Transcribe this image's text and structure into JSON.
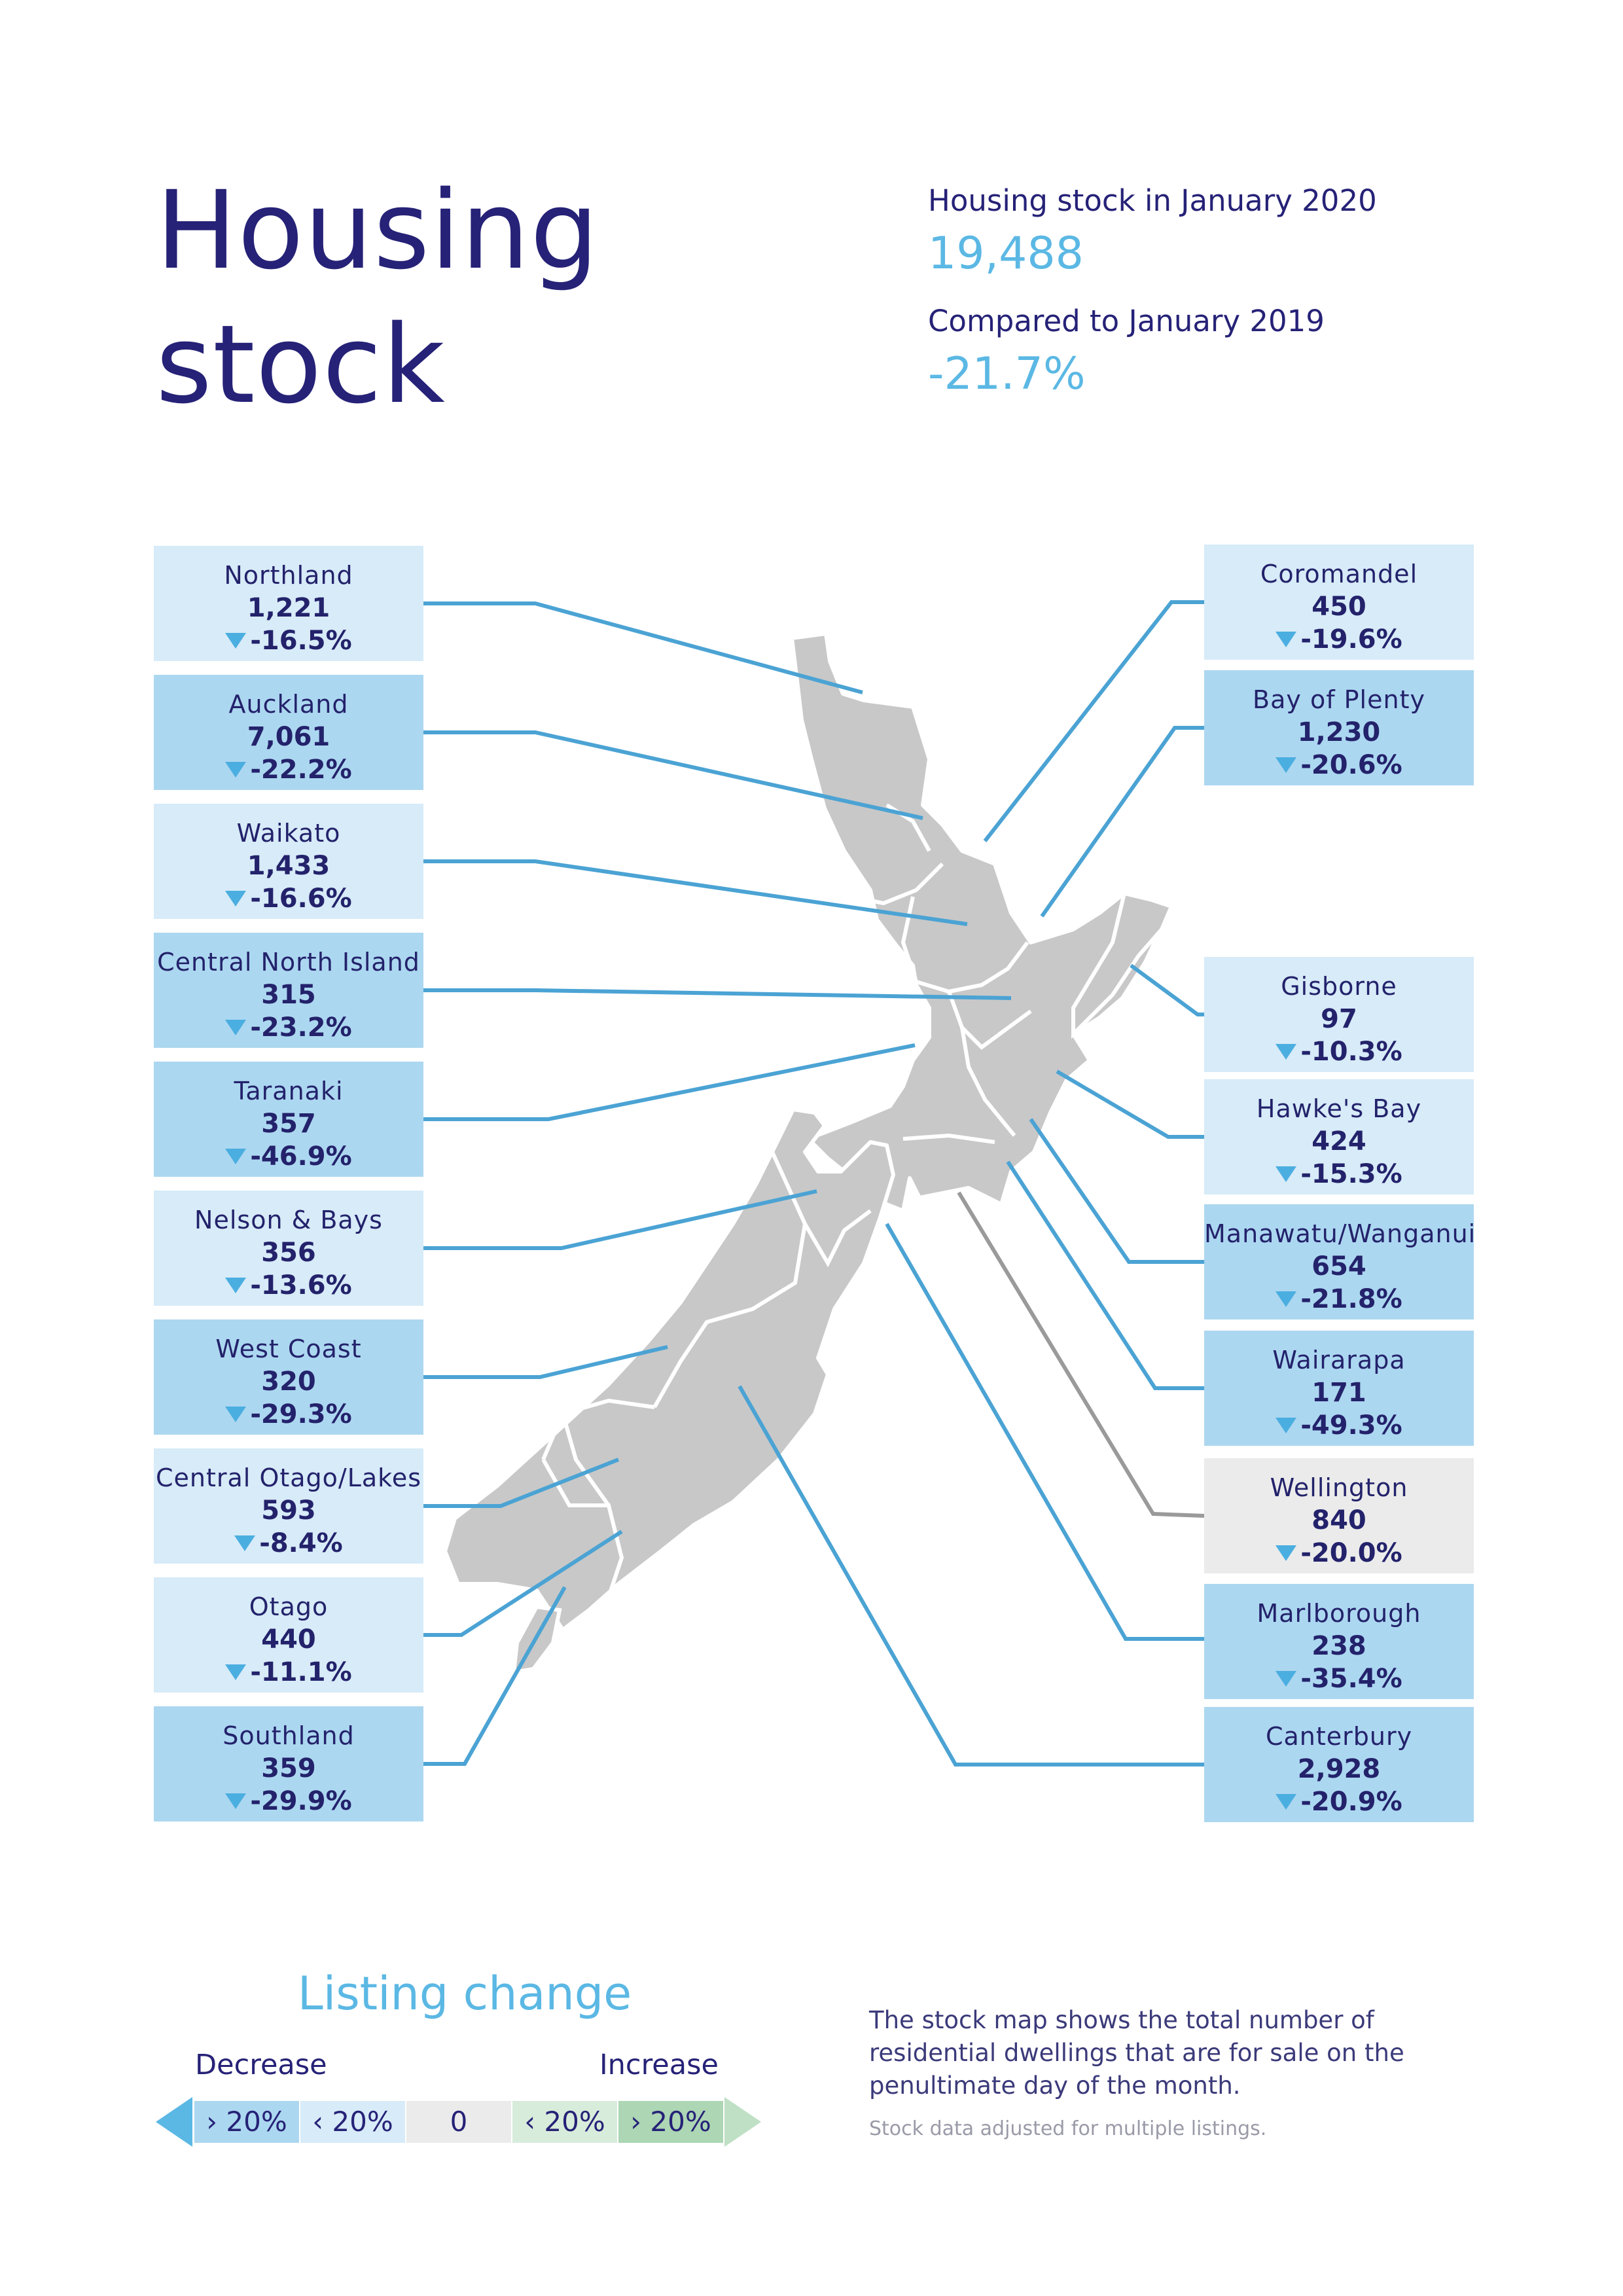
{
  "title": "Housing stock",
  "summary": {
    "stock_label": "Housing stock in January 2020",
    "stock_value": "19,488",
    "compare_label": "Compared to January 2019",
    "compare_value": "-21.7%"
  },
  "regions_left": [
    {
      "name": "Northland",
      "value": "1,221",
      "change": "-16.5%",
      "shade": "light"
    },
    {
      "name": "Auckland",
      "value": "7,061",
      "change": "-22.2%",
      "shade": "mid"
    },
    {
      "name": "Waikato",
      "value": "1,433",
      "change": "-16.6%",
      "shade": "light"
    },
    {
      "name": "Central North Island",
      "value": "315",
      "change": "-23.2%",
      "shade": "mid"
    },
    {
      "name": "Taranaki",
      "value": "357",
      "change": "-46.9%",
      "shade": "mid"
    },
    {
      "name": "Nelson & Bays",
      "value": "356",
      "change": "-13.6%",
      "shade": "light"
    },
    {
      "name": "West Coast",
      "value": "320",
      "change": "-29.3%",
      "shade": "mid"
    },
    {
      "name": "Central Otago/Lakes",
      "value": "593",
      "change": "-8.4%",
      "shade": "light"
    },
    {
      "name": "Otago",
      "value": "440",
      "change": "-11.1%",
      "shade": "light"
    },
    {
      "name": "Southland",
      "value": "359",
      "change": "-29.9%",
      "shade": "mid"
    }
  ],
  "regions_right": [
    {
      "name": "Coromandel",
      "value": "450",
      "change": "-19.6%",
      "shade": "light"
    },
    {
      "name": "Bay of Plenty",
      "value": "1,230",
      "change": "-20.6%",
      "shade": "mid"
    },
    {
      "name": "Gisborne",
      "value": "97",
      "change": "-10.3%",
      "shade": "light"
    },
    {
      "name": "Hawke's Bay",
      "value": "424",
      "change": "-15.3%",
      "shade": "light"
    },
    {
      "name": "Manawatu/Wanganui",
      "value": "654",
      "change": "-21.8%",
      "shade": "mid"
    },
    {
      "name": "Wairarapa",
      "value": "171",
      "change": "-49.3%",
      "shade": "mid"
    },
    {
      "name": "Wellington",
      "value": "840",
      "change": "-20.0%",
      "shade": "grey"
    },
    {
      "name": "Marlborough",
      "value": "238",
      "change": "-35.4%",
      "shade": "mid"
    },
    {
      "name": "Canterbury",
      "value": "2,928",
      "change": "-20.9%",
      "shade": "mid"
    }
  ],
  "legend": {
    "title": "Listing change",
    "decrease": "Decrease",
    "increase": "Increase",
    "cells": [
      "› 20%",
      "‹ 20%",
      "0",
      "‹ 20%",
      "› 20%"
    ],
    "colors": [
      "#acd7f0",
      "#d7ebf8",
      "#ebebeb",
      "#d8ecdb",
      "#acd6b4"
    ],
    "arrow_left_color": "#5bb8e4",
    "arrow_right_color": "#bfe0c5"
  },
  "note": "The stock map shows the total number of residential dwellings that are for sale on the penultimate day of the month.",
  "note_small": "Stock data adjusted for multiple listings.",
  "colors": {
    "title": "#262277",
    "accent": "#5bb8e4",
    "connector": "#4ba3d4",
    "connector_grey": "#9a9a9a",
    "map": "#c8c8c8"
  },
  "icons": {
    "down": "down-triangle-icon"
  }
}
